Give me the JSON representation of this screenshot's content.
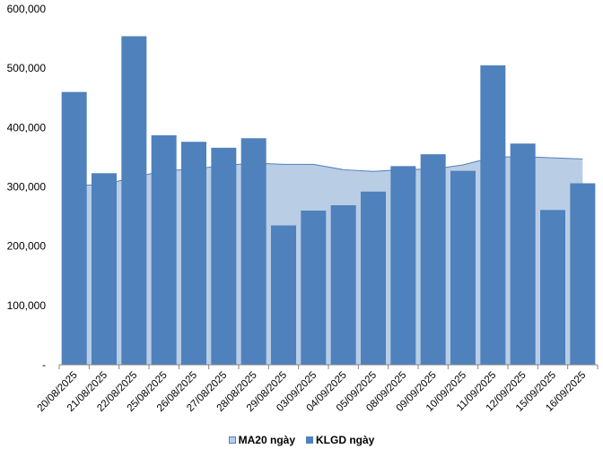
{
  "chart_data": {
    "type": "bar",
    "title": "",
    "xlabel": "",
    "ylabel": "",
    "ylim": [
      0,
      600000
    ],
    "y_ticks": [
      0,
      100000,
      200000,
      300000,
      400000,
      500000,
      600000
    ],
    "y_tick_labels": [
      "-",
      "100,000",
      "200,000",
      "300,000",
      "400,000",
      "500,000",
      "600,000"
    ],
    "categories": [
      "20/08/2025",
      "21/08/2025",
      "22/08/2025",
      "25/08/2025",
      "26/08/2025",
      "27/08/2025",
      "28/08/2025",
      "29/08/2025",
      "03/09/2025",
      "04/09/2025",
      "05/09/2025",
      "08/09/2025",
      "09/09/2025",
      "10/09/2025",
      "11/09/2025",
      "12/09/2025",
      "15/09/2025",
      "16/09/2025"
    ],
    "series": [
      {
        "name": "MA20 ngày",
        "type": "area",
        "color": "#B9CDE5",
        "line_color": "#4F81BD",
        "values": [
          302000,
          304000,
          316000,
          327000,
          330000,
          336000,
          340000,
          338000,
          338000,
          329000,
          326000,
          329000,
          330000,
          337000,
          350000,
          351000,
          349000,
          347000
        ]
      },
      {
        "name": "KLGD ngày",
        "type": "bar",
        "color": "#4F81BD",
        "values": [
          460000,
          323000,
          554000,
          387000,
          376000,
          366000,
          382000,
          235000,
          260000,
          269000,
          292000,
          335000,
          355000,
          327000,
          505000,
          373000,
          261000,
          306000
        ]
      }
    ],
    "legend_position": "bottom",
    "grid": false
  }
}
